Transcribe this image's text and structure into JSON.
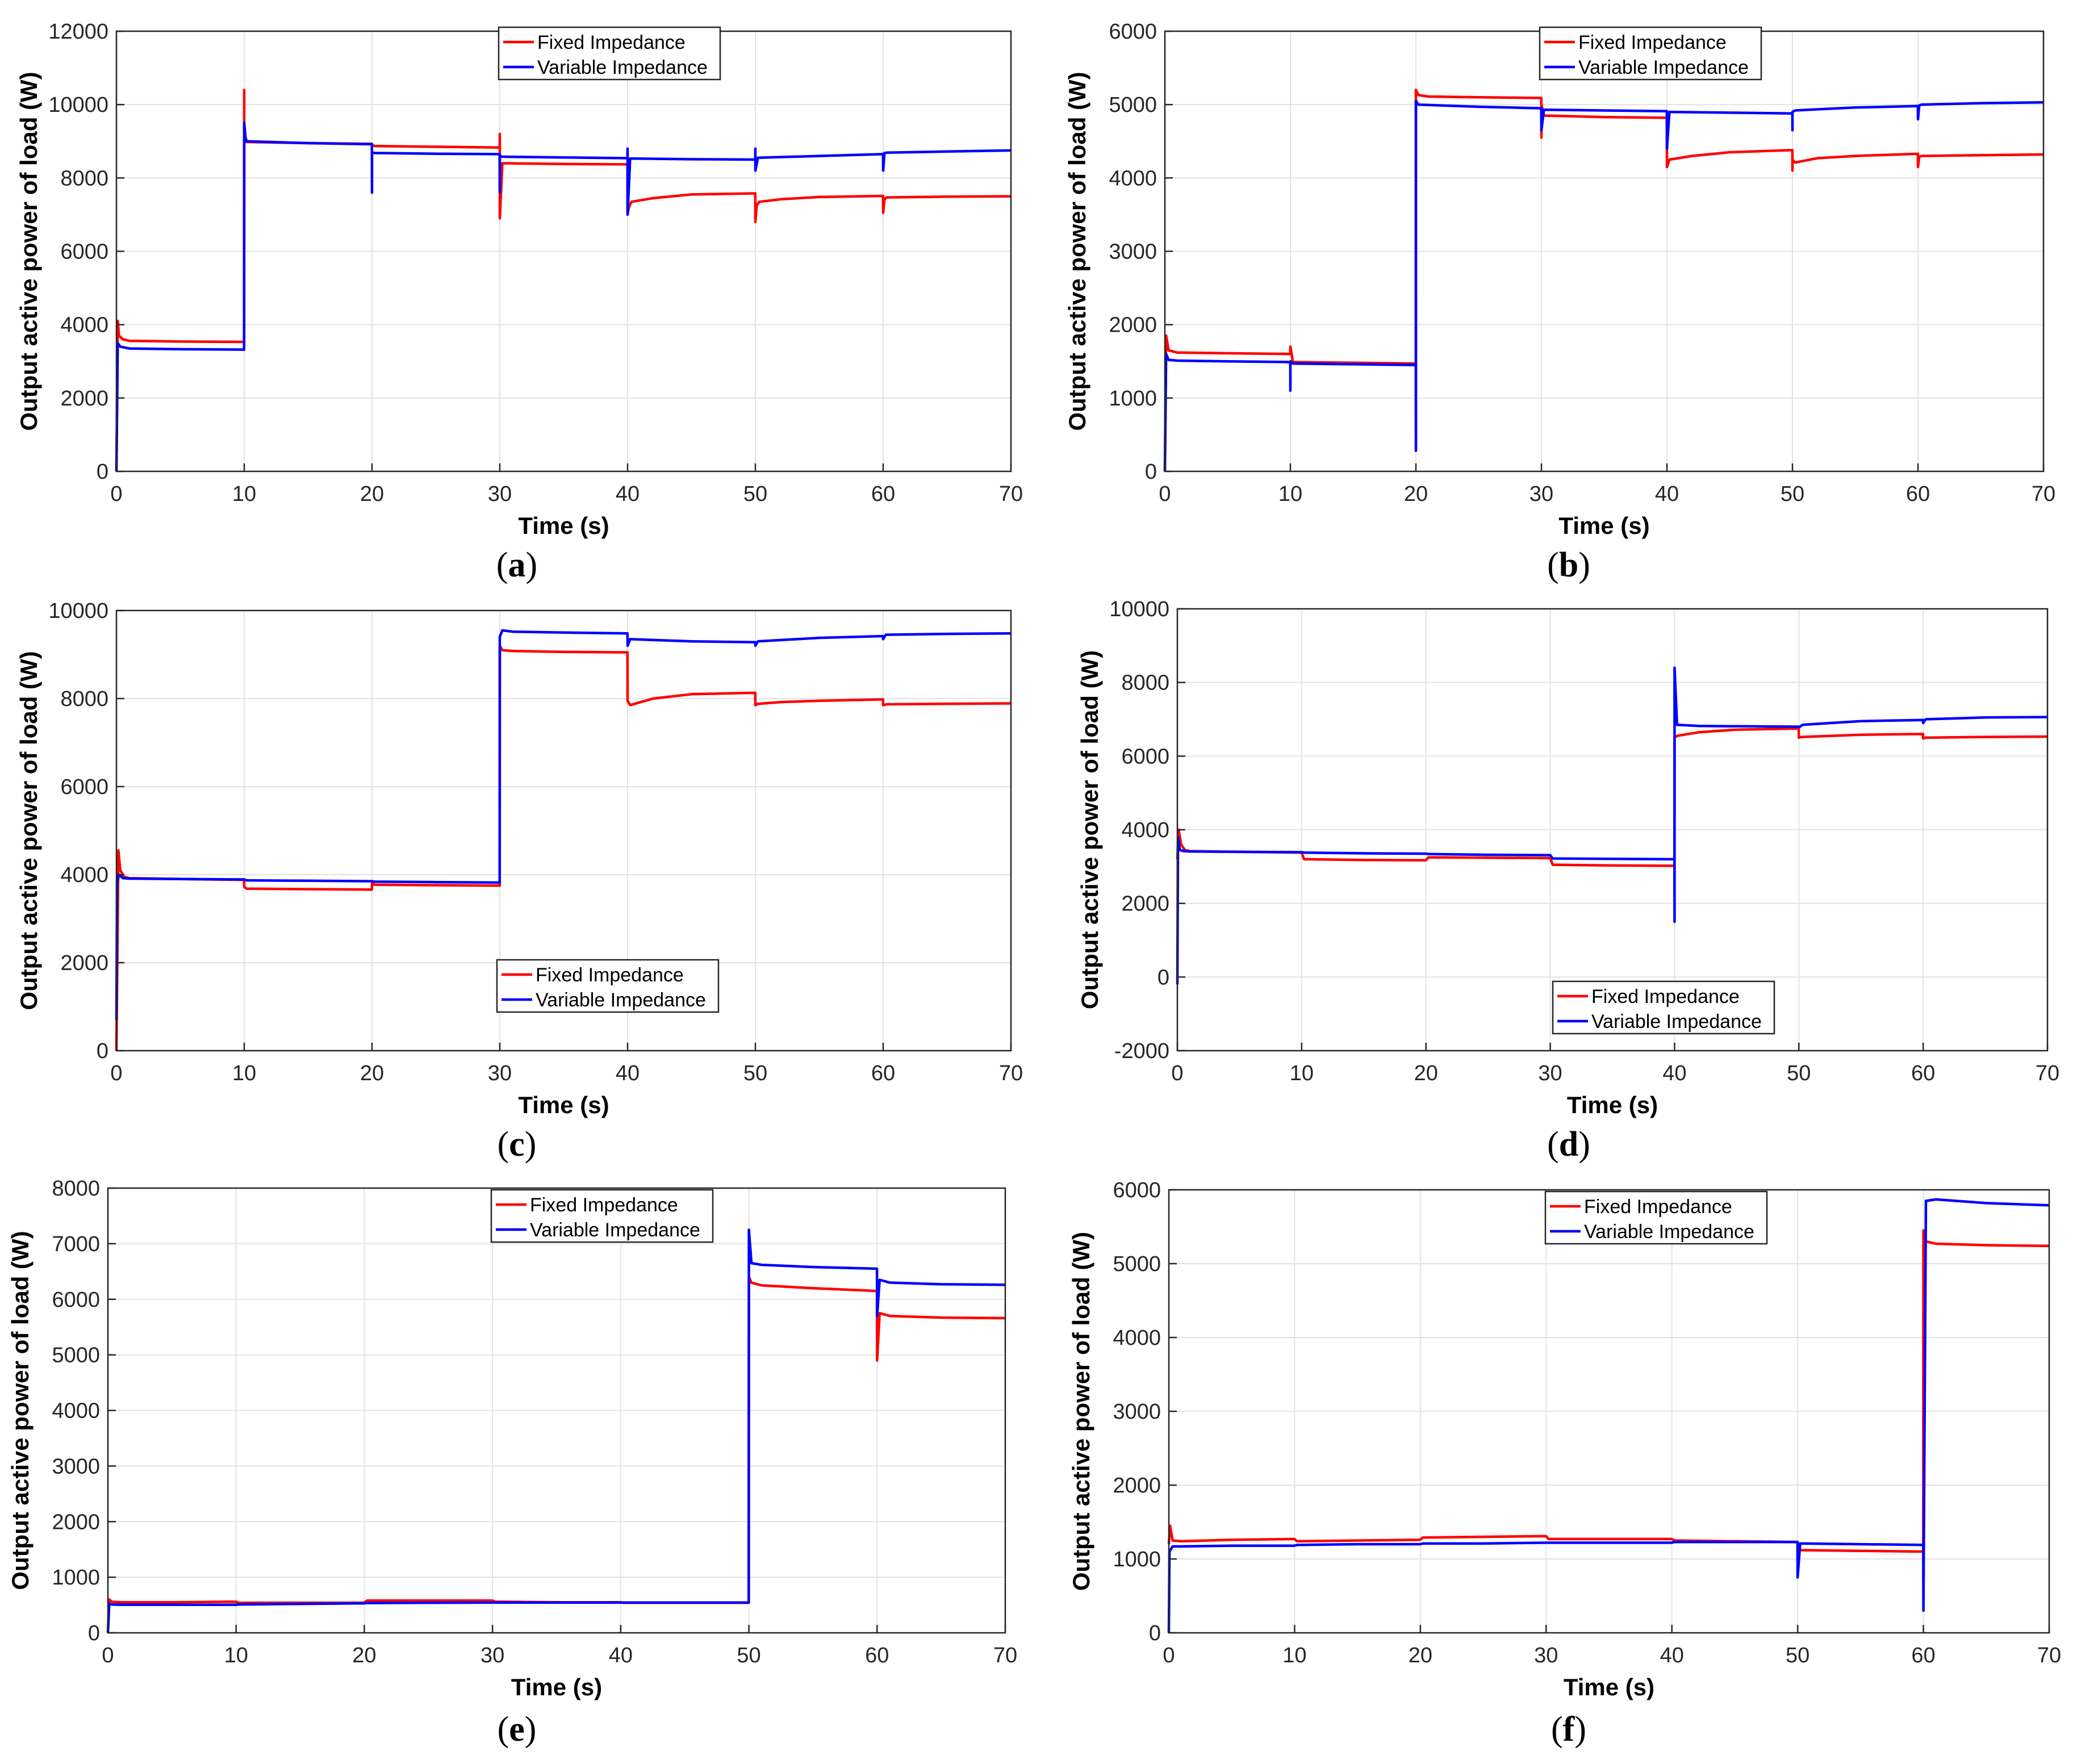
{
  "chart_data": [
    {
      "panel": "a",
      "type": "line",
      "ylabel": "Output active power of load (W)",
      "xlabel": "Time (s)",
      "xlim": [
        0,
        70
      ],
      "ylim": [
        0,
        12000
      ],
      "xticks": [
        "0",
        "10",
        "20",
        "30",
        "40",
        "50",
        "60",
        "70"
      ],
      "yticks": [
        "0",
        "2000",
        "4000",
        "6000",
        "8000",
        "10000",
        "12000"
      ],
      "legend": "top-center",
      "grid": true,
      "series": [
        {
          "name": "Fixed Impedance",
          "color": "#ff0000",
          "x": [
            0,
            0.1,
            0.2,
            0.5,
            1,
            5,
            9.99,
            10,
            10,
            10.2,
            15,
            19.99,
            20,
            20.2,
            25,
            29.99,
            30,
            30,
            30.2,
            35,
            39.99,
            40,
            40.1,
            40.3,
            42,
            45,
            49.99,
            50,
            50.1,
            50.3,
            52,
            55,
            59.99,
            60,
            60.1,
            60.3,
            65,
            70
          ],
          "y": [
            0,
            4100,
            3700,
            3600,
            3560,
            3540,
            3530,
            10400,
            9000,
            8980,
            8950,
            8930,
            8900,
            8870,
            8850,
            8830,
            9200,
            6900,
            8400,
            8380,
            8370,
            7000,
            7200,
            7350,
            7450,
            7550,
            7580,
            6800,
            7250,
            7350,
            7420,
            7480,
            7510,
            7050,
            7430,
            7470,
            7490,
            7500
          ]
        },
        {
          "name": "Variable Impedance",
          "color": "#0000ff",
          "x": [
            0,
            0.1,
            0.3,
            1,
            5,
            9.99,
            10,
            10.1,
            10.2,
            15,
            19.99,
            20,
            20,
            20.2,
            25,
            29.99,
            30,
            30,
            30.2,
            35,
            39.99,
            40,
            40,
            40.2,
            45,
            49.99,
            50,
            50,
            50.2,
            55,
            59.99,
            60,
            60.1,
            60.3,
            65,
            70
          ],
          "y": [
            0,
            3500,
            3400,
            3350,
            3330,
            3320,
            9500,
            9100,
            9000,
            8950,
            8920,
            7600,
            8700,
            8680,
            8660,
            8650,
            7600,
            8600,
            8580,
            8560,
            8540,
            8800,
            7000,
            8530,
            8510,
            8500,
            8800,
            8200,
            8550,
            8600,
            8650,
            8200,
            8680,
            8690,
            8720,
            8750
          ]
        }
      ]
    },
    {
      "panel": "b",
      "type": "line",
      "ylabel": "Output active power of load (W)",
      "xlabel": "Time (s)",
      "xlim": [
        0,
        70
      ],
      "ylim": [
        0,
        6000
      ],
      "xticks": [
        "0",
        "10",
        "20",
        "30",
        "40",
        "50",
        "60",
        "70"
      ],
      "yticks": [
        "0",
        "1000",
        "2000",
        "3000",
        "4000",
        "5000",
        "6000"
      ],
      "legend": "top-right",
      "grid": true,
      "series": [
        {
          "name": "Fixed Impedance",
          "color": "#ff0000",
          "x": [
            0,
            0.1,
            0.3,
            1,
            5,
            9.99,
            10,
            10.2,
            15,
            19.99,
            20,
            20.2,
            21,
            25,
            29.99,
            30,
            30,
            30.2,
            35,
            39.99,
            40,
            40,
            40.2,
            42,
            45,
            49.99,
            50,
            50,
            50.2,
            52,
            55,
            59.99,
            60,
            60.1,
            60.3,
            65,
            70
          ],
          "y": [
            0,
            1850,
            1650,
            1620,
            1610,
            1600,
            1700,
            1490,
            1480,
            1470,
            5200,
            5130,
            5110,
            5100,
            5090,
            4550,
            5000,
            4850,
            4830,
            4820,
            4450,
            4150,
            4250,
            4300,
            4350,
            4380,
            4100,
            4250,
            4210,
            4270,
            4300,
            4330,
            4150,
            4290,
            4300,
            4310,
            4320
          ]
        },
        {
          "name": "Variable Impedance",
          "color": "#0000ff",
          "x": [
            0,
            0.1,
            0.3,
            1,
            5,
            9.99,
            10,
            10,
            10.2,
            15,
            19.99,
            20,
            20,
            20.2,
            25,
            29.99,
            30,
            30.2,
            35,
            39.99,
            40,
            40.2,
            45,
            49.99,
            50,
            50,
            50.2,
            55,
            59.99,
            60,
            60.1,
            60.3,
            65,
            70
          ],
          "y": [
            0,
            1600,
            1520,
            1510,
            1500,
            1490,
            1100,
            1500,
            1470,
            1460,
            1450,
            280,
            5050,
            5000,
            4970,
            4950,
            4650,
            4930,
            4920,
            4910,
            4400,
            4900,
            4890,
            4880,
            4650,
            4900,
            4920,
            4960,
            4980,
            4800,
            4990,
            5000,
            5020,
            5030
          ]
        }
      ]
    },
    {
      "panel": "c",
      "type": "line",
      "ylabel": "Output active power of load (W)",
      "xlabel": "Time (s)",
      "xlim": [
        0,
        70
      ],
      "ylim": [
        0,
        10000
      ],
      "xticks": [
        "0",
        "10",
        "20",
        "30",
        "40",
        "50",
        "60",
        "70"
      ],
      "yticks": [
        "0",
        "2000",
        "4000",
        "6000",
        "8000",
        "10000"
      ],
      "legend": "bottom-center",
      "grid": true,
      "series": [
        {
          "name": "Fixed Impedance",
          "color": "#ff0000",
          "x": [
            0,
            0.15,
            0.3,
            0.6,
            1,
            5,
            9.99,
            10,
            10.2,
            15,
            19.99,
            20,
            20.2,
            25,
            29.99,
            30,
            30.2,
            31,
            35,
            39.99,
            40,
            40.2,
            42,
            45,
            49.99,
            50,
            50.2,
            52,
            55,
            59.99,
            60,
            60.3,
            65,
            70
          ],
          "y": [
            0,
            4550,
            4100,
            3950,
            3920,
            3900,
            3880,
            3720,
            3680,
            3670,
            3660,
            3800,
            3770,
            3760,
            3750,
            9200,
            9100,
            9080,
            9060,
            9050,
            7950,
            7850,
            8000,
            8100,
            8130,
            7850,
            7880,
            7920,
            7950,
            7980,
            7850,
            7870,
            7880,
            7890
          ]
        },
        {
          "name": "Variable Impedance",
          "color": "#0000ff",
          "x": [
            0,
            0.05,
            0.2,
            0.5,
            1,
            5,
            9.99,
            10.2,
            15,
            19.99,
            20.2,
            25,
            29.99,
            30,
            30.2,
            31,
            35,
            39.99,
            40,
            40.2,
            45,
            49.99,
            50,
            50.2,
            55,
            59.99,
            60,
            60.2,
            65,
            70
          ],
          "y": [
            700,
            3800,
            4000,
            3920,
            3910,
            3900,
            3890,
            3870,
            3860,
            3850,
            3840,
            3830,
            3820,
            9400,
            9550,
            9520,
            9500,
            9480,
            9200,
            9350,
            9300,
            9280,
            9200,
            9300,
            9380,
            9420,
            9350,
            9450,
            9470,
            9480
          ]
        }
      ]
    },
    {
      "panel": "d",
      "type": "line",
      "ylabel": "Output active power of load (W)",
      "xlabel": "Time (s)",
      "xlim": [
        0,
        70
      ],
      "ylim": [
        -2000,
        10000
      ],
      "xticks": [
        "0",
        "10",
        "20",
        "30",
        "40",
        "50",
        "60",
        "70"
      ],
      "yticks": [
        "-2000",
        "0",
        "2000",
        "4000",
        "6000",
        "8000",
        "10000"
      ],
      "legend": "bottom-center",
      "grid": true,
      "series": [
        {
          "name": "Fixed Impedance",
          "color": "#ff0000",
          "x": [
            0,
            0.1,
            0.3,
            0.6,
            1,
            5,
            9.99,
            10.2,
            15,
            19.99,
            20.2,
            25,
            29.99,
            30.2,
            35,
            39.99,
            40,
            40.2,
            42,
            45,
            49.99,
            50,
            50.2,
            55,
            59.99,
            60,
            60.2,
            65,
            70
          ],
          "y": [
            3200,
            4000,
            3600,
            3450,
            3420,
            3400,
            3380,
            3200,
            3180,
            3170,
            3250,
            3240,
            3230,
            3050,
            3030,
            3020,
            6500,
            6550,
            6650,
            6720,
            6750,
            6500,
            6520,
            6580,
            6600,
            6480,
            6500,
            6520,
            6530
          ]
        },
        {
          "name": "Variable Impedance",
          "color": "#0000ff",
          "x": [
            0,
            0.05,
            0.2,
            0.5,
            1,
            5,
            9.99,
            10.2,
            15,
            19.99,
            20.2,
            25,
            29.99,
            30.2,
            35,
            39.99,
            40,
            40,
            40.2,
            42,
            45,
            49.99,
            50,
            50.3,
            55,
            59.99,
            60,
            60.2,
            65,
            70
          ],
          "y": [
            -200,
            3800,
            3450,
            3420,
            3410,
            3400,
            3390,
            3380,
            3360,
            3350,
            3340,
            3320,
            3310,
            3220,
            3210,
            3200,
            1500,
            8400,
            6850,
            6820,
            6810,
            6800,
            6780,
            6850,
            6950,
            6980,
            6900,
            7000,
            7050,
            7060
          ]
        }
      ]
    },
    {
      "panel": "e",
      "type": "line",
      "ylabel": "Output active power of load (W)",
      "xlabel": "Time (s)",
      "xlim": [
        0,
        70
      ],
      "ylim": [
        0,
        8000
      ],
      "xticks": [
        "0",
        "10",
        "20",
        "30",
        "40",
        "50",
        "60",
        "70"
      ],
      "yticks": [
        "0",
        "1000",
        "2000",
        "3000",
        "4000",
        "5000",
        "6000",
        "7000",
        "8000"
      ],
      "legend": "top-center",
      "grid": true,
      "series": [
        {
          "name": "Fixed Impedance",
          "color": "#ff0000",
          "x": [
            0,
            0.1,
            0.3,
            1,
            5,
            9.99,
            10.2,
            15,
            19.99,
            20.2,
            25,
            29.99,
            30.2,
            35,
            39.99,
            40.2,
            45,
            49.99,
            50,
            50.2,
            51,
            55,
            59.99,
            60,
            60.2,
            61,
            65,
            70
          ],
          "y": [
            0,
            600,
            560,
            550,
            550,
            560,
            540,
            540,
            540,
            580,
            580,
            580,
            560,
            550,
            550,
            540,
            540,
            540,
            6400,
            6300,
            6250,
            6200,
            6150,
            4900,
            5750,
            5700,
            5670,
            5660
          ]
        },
        {
          "name": "Variable Impedance",
          "color": "#0000ff",
          "x": [
            0,
            0.1,
            0.3,
            1,
            5,
            9.99,
            10.2,
            15,
            19.99,
            20.2,
            25,
            29.99,
            30.2,
            35,
            39.99,
            40.2,
            45,
            49.99,
            50,
            50.2,
            51,
            55,
            59.99,
            60,
            60.2,
            61,
            65,
            70
          ],
          "y": [
            0,
            520,
            510,
            505,
            505,
            505,
            510,
            520,
            530,
            535,
            540,
            545,
            545,
            545,
            545,
            545,
            545,
            545,
            7250,
            6650,
            6620,
            6580,
            6550,
            5700,
            6350,
            6300,
            6270,
            6260
          ]
        }
      ]
    },
    {
      "panel": "f",
      "type": "line",
      "ylabel": "Output active power of load (W)",
      "xlabel": "Time (s)",
      "xlim": [
        0,
        70
      ],
      "ylim": [
        0,
        6000
      ],
      "xticks": [
        "0",
        "10",
        "20",
        "30",
        "40",
        "50",
        "60",
        "70"
      ],
      "yticks": [
        "0",
        "1000",
        "2000",
        "3000",
        "4000",
        "5000",
        "6000"
      ],
      "legend": "top-center",
      "grid": true,
      "series": [
        {
          "name": "Fixed Impedance",
          "color": "#ff0000",
          "x": [
            0,
            0.1,
            0.3,
            1,
            5,
            9.99,
            10.2,
            15,
            19.99,
            20.2,
            25,
            29.99,
            30.2,
            35,
            39.99,
            40.2,
            45,
            49.99,
            50.2,
            55,
            59.99,
            60,
            60.2,
            61,
            65,
            70
          ],
          "y": [
            1200,
            1450,
            1250,
            1240,
            1260,
            1270,
            1240,
            1250,
            1260,
            1290,
            1300,
            1310,
            1270,
            1270,
            1270,
            1250,
            1240,
            1230,
            1120,
            1110,
            1100,
            5450,
            5300,
            5270,
            5250,
            5240
          ]
        },
        {
          "name": "Variable Impedance",
          "color": "#0000ff",
          "x": [
            0,
            0.05,
            0.3,
            1,
            5,
            9.99,
            10.2,
            15,
            19.99,
            20.2,
            25,
            29.99,
            30.2,
            35,
            39.99,
            40.2,
            45,
            49.99,
            50,
            50.2,
            55,
            59.99,
            60,
            60.2,
            61,
            65,
            70
          ],
          "y": [
            0,
            1100,
            1170,
            1170,
            1180,
            1180,
            1190,
            1200,
            1200,
            1210,
            1210,
            1220,
            1220,
            1220,
            1220,
            1230,
            1230,
            1230,
            750,
            1210,
            1200,
            1190,
            300,
            5850,
            5870,
            5820,
            5790
          ]
        }
      ]
    }
  ],
  "captions": [
    {
      "open": "(",
      "letter": "a",
      "close": ")"
    },
    {
      "open": "(",
      "letter": "b",
      "close": ")"
    },
    {
      "open": "(",
      "letter": "c",
      "close": ")"
    },
    {
      "open": "(",
      "letter": "d",
      "close": ")"
    },
    {
      "open": "(",
      "letter": "e",
      "close": ")"
    },
    {
      "open": "(",
      "letter": "f",
      "close": ")"
    }
  ]
}
